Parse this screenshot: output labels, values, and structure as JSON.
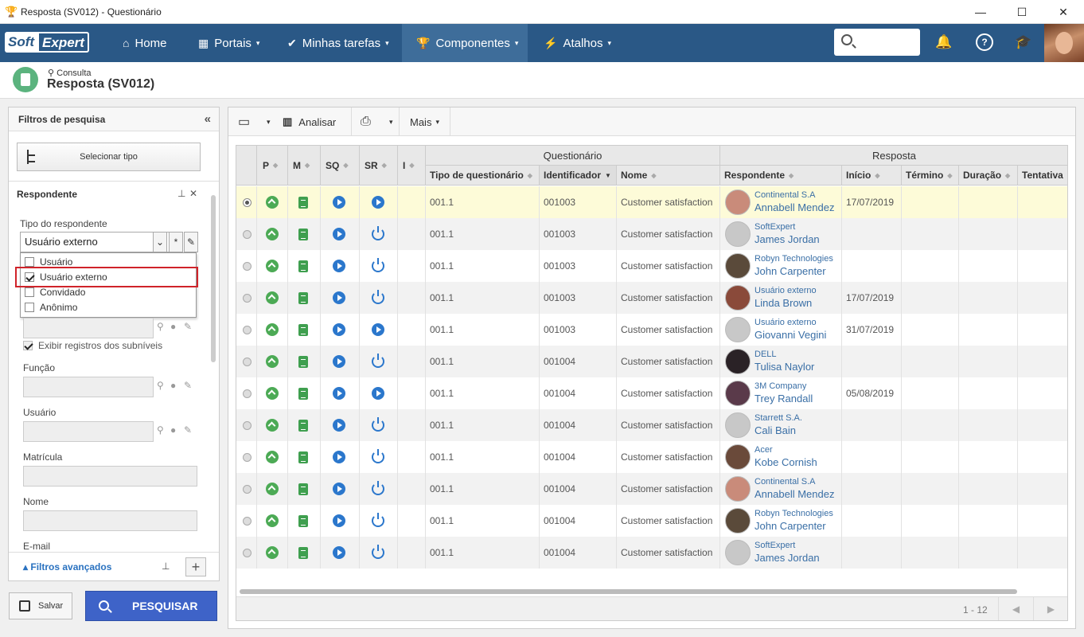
{
  "window": {
    "title": "Resposta (SV012) - Questionário",
    "min": "—",
    "max": "☐",
    "close": "✕"
  },
  "logo": {
    "part1": "Soft",
    "part2": "Expert"
  },
  "nav": {
    "items": [
      {
        "label": "Home",
        "icon": "home-icon",
        "glyph": "⌂"
      },
      {
        "label": "Portais",
        "icon": "grid-icon",
        "glyph": "▦",
        "caret": "▾"
      },
      {
        "label": "Minhas tarefas",
        "icon": "check-icon",
        "glyph": "✔",
        "caret": "▾"
      },
      {
        "label": "Componentes",
        "icon": "trophy-icon",
        "glyph": "🏆",
        "caret": "▾"
      },
      {
        "label": "Atalhos",
        "icon": "bolt-icon",
        "glyph": "⚡",
        "caret": "▾"
      }
    ]
  },
  "page": {
    "subtitle": "Consulta",
    "title": "Resposta (SV012)"
  },
  "filters": {
    "title": "Filtros de pesquisa",
    "collapse": "«",
    "select_type": "Selecionar tipo",
    "section": "Respondente",
    "type_label": "Tipo do respondente",
    "type_value": "Usuário externo",
    "dropdown": [
      {
        "label": "Usuário",
        "checked": false
      },
      {
        "label": "Usuário externo",
        "checked": true
      },
      {
        "label": "Convidado",
        "checked": false
      },
      {
        "label": "Anônimo",
        "checked": false
      }
    ],
    "show_sub": "Exibir registros dos subníveis",
    "funcao": "Função",
    "usuario": "Usuário",
    "matricula": "Matrícula",
    "nome": "Nome",
    "email": "E-mail",
    "advanced": "Filtros avançados",
    "save": "Salvar",
    "search": "PESQUISAR"
  },
  "toolbar": {
    "analisar": "Analisar",
    "mais": "Mais"
  },
  "grid": {
    "group_q": "Questionário",
    "group_r": "Resposta",
    "headers": {
      "p": "P",
      "m": "M",
      "sq": "SQ",
      "sr": "SR",
      "i": "I",
      "tipo": "Tipo de questionário",
      "ident": "Identificador",
      "nome": "Nome",
      "resp": "Respondente",
      "inicio": "Início",
      "termino": "Término",
      "duracao": "Duração",
      "tentativa": "Tentativa"
    },
    "rows": [
      {
        "sr": "play",
        "tipo": "001.1",
        "id": "001003",
        "nome": "Customer satisfaction",
        "org": "Continental S.A",
        "name": "Annabell Mendez",
        "inicio": "17/07/2019",
        "av": "#c98b7a"
      },
      {
        "sr": "power",
        "tipo": "001.1",
        "id": "001003",
        "nome": "Customer satisfaction",
        "org": "SoftExpert",
        "name": "James Jordan",
        "inicio": "",
        "av": "#c8c8c8"
      },
      {
        "sr": "power",
        "tipo": "001.1",
        "id": "001003",
        "nome": "Customer satisfaction",
        "org": "Robyn Technologies",
        "name": "John Carpenter",
        "inicio": "",
        "av": "#5a4a3a"
      },
      {
        "sr": "power",
        "tipo": "001.1",
        "id": "001003",
        "nome": "Customer satisfaction",
        "org": "Usuário externo",
        "name": "Linda Brown",
        "inicio": "17/07/2019",
        "av": "#8a4a3a"
      },
      {
        "sr": "play",
        "tipo": "001.1",
        "id": "001003",
        "nome": "Customer satisfaction",
        "org": "Usuário externo",
        "name": "Giovanni Vegini",
        "inicio": "31/07/2019",
        "av": "#c8c8c8"
      },
      {
        "sr": "power",
        "tipo": "001.1",
        "id": "001004",
        "nome": "Customer satisfaction",
        "org": "DELL",
        "name": "Tulisa Naylor",
        "inicio": "",
        "av": "#2a2226"
      },
      {
        "sr": "play",
        "tipo": "001.1",
        "id": "001004",
        "nome": "Customer satisfaction",
        "org": "3M Company",
        "name": "Trey Randall",
        "inicio": "05/08/2019",
        "av": "#5a3a4a"
      },
      {
        "sr": "power",
        "tipo": "001.1",
        "id": "001004",
        "nome": "Customer satisfaction",
        "org": "Starrett S.A.",
        "name": "Cali Bain",
        "inicio": "",
        "av": "#c8c8c8"
      },
      {
        "sr": "power",
        "tipo": "001.1",
        "id": "001004",
        "nome": "Customer satisfaction",
        "org": "Acer",
        "name": "Kobe Cornish",
        "inicio": "",
        "av": "#6a4a3a"
      },
      {
        "sr": "power",
        "tipo": "001.1",
        "id": "001004",
        "nome": "Customer satisfaction",
        "org": "Continental S.A",
        "name": "Annabell Mendez",
        "inicio": "",
        "av": "#c98b7a"
      },
      {
        "sr": "power",
        "tipo": "001.1",
        "id": "001004",
        "nome": "Customer satisfaction",
        "org": "Robyn Technologies",
        "name": "John Carpenter",
        "inicio": "",
        "av": "#5a4a3a"
      },
      {
        "sr": "power",
        "tipo": "001.1",
        "id": "001004",
        "nome": "Customer satisfaction",
        "org": "SoftExpert",
        "name": "James Jordan",
        "inicio": "",
        "av": "#c8c8c8"
      }
    ],
    "pagination": "1 - 12",
    "prev": "◀",
    "next": "▶"
  }
}
